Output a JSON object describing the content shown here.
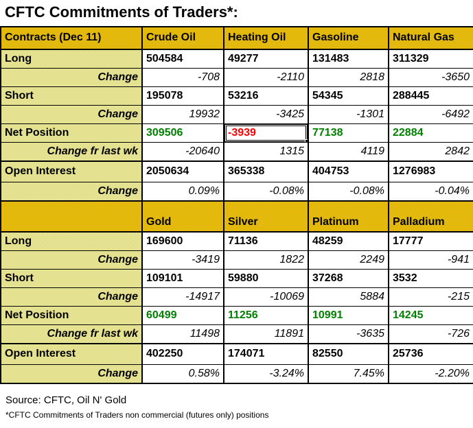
{
  "title": "CFTC Commitments of Traders*:",
  "colors": {
    "positive_net": "#008000",
    "negative_net": "#ff0000",
    "header_gold": "#e7ba00",
    "label_khaki": "#e9e694",
    "grid_border": "#000000"
  },
  "sections": [
    {
      "header": [
        "Contracts (Dec 11)",
        "Crude Oil",
        "Heating Oil",
        "Gasoline",
        "Natural Gas"
      ],
      "rows": [
        {
          "label": "Long",
          "style": "value",
          "values": [
            "504584",
            "49277",
            "131483",
            "311329"
          ]
        },
        {
          "label": "Change",
          "style": "change",
          "values": [
            "-708",
            "-2110",
            "2818",
            "-3650"
          ]
        },
        {
          "label": "Short",
          "style": "value",
          "values": [
            "195078",
            "53216",
            "54345",
            "288445"
          ]
        },
        {
          "label": "Change",
          "style": "change",
          "values": [
            "19932",
            "-3425",
            "-1301",
            "-6492"
          ]
        },
        {
          "label": "Net Position",
          "style": "value",
          "values": [
            "309506",
            "-3939",
            "77138",
            "22884"
          ],
          "value_colors": [
            "positive_net",
            "negative_net",
            "positive_net",
            "positive_net"
          ],
          "selected_col": 1
        },
        {
          "label": "Change fr last wk",
          "style": "change",
          "values": [
            "-20640",
            "1315",
            "4119",
            "2842"
          ]
        },
        {
          "label": "Open Interest",
          "style": "value",
          "thick_top": true,
          "oi": true,
          "values": [
            "2050634",
            "365338",
            "404753",
            "1276983"
          ]
        },
        {
          "label": "Change",
          "style": "change",
          "values": [
            "0.09%",
            "-0.08%",
            "-0.08%",
            "-0.04%"
          ]
        }
      ]
    },
    {
      "header": [
        "",
        "Gold",
        "Silver",
        "Platinum",
        "Palladium"
      ],
      "rows": [
        {
          "label": "Long",
          "style": "value",
          "values": [
            "169600",
            "71136",
            "48259",
            "17777"
          ]
        },
        {
          "label": "Change",
          "style": "change",
          "values": [
            "-3419",
            "1822",
            "2249",
            "-941"
          ]
        },
        {
          "label": "Short",
          "style": "value",
          "values": [
            "109101",
            "59880",
            "37268",
            "3532"
          ]
        },
        {
          "label": "Change",
          "style": "change",
          "values": [
            "-14917",
            "-10069",
            "5884",
            "-215"
          ]
        },
        {
          "label": "Net Position",
          "style": "value",
          "values": [
            "60499",
            "11256",
            "10991",
            "14245"
          ],
          "value_colors": [
            "positive_net",
            "positive_net",
            "positive_net",
            "positive_net"
          ]
        },
        {
          "label": "Change fr last wk",
          "style": "change",
          "values": [
            "11498",
            "11891",
            "-3635",
            "-726"
          ]
        },
        {
          "label": "Open Interest",
          "style": "value",
          "thick_top": true,
          "oi": true,
          "values": [
            "402250",
            "174071",
            "82550",
            "25736"
          ]
        },
        {
          "label": "Change",
          "style": "change",
          "values": [
            "0.58%",
            "-3.24%",
            "7.45%",
            "-2.20%"
          ]
        }
      ]
    }
  ],
  "footer": {
    "source": "Source: CFTC, Oil N' Gold",
    "note": "*CFTC Commitments of Traders non commercial (futures only) positions"
  }
}
